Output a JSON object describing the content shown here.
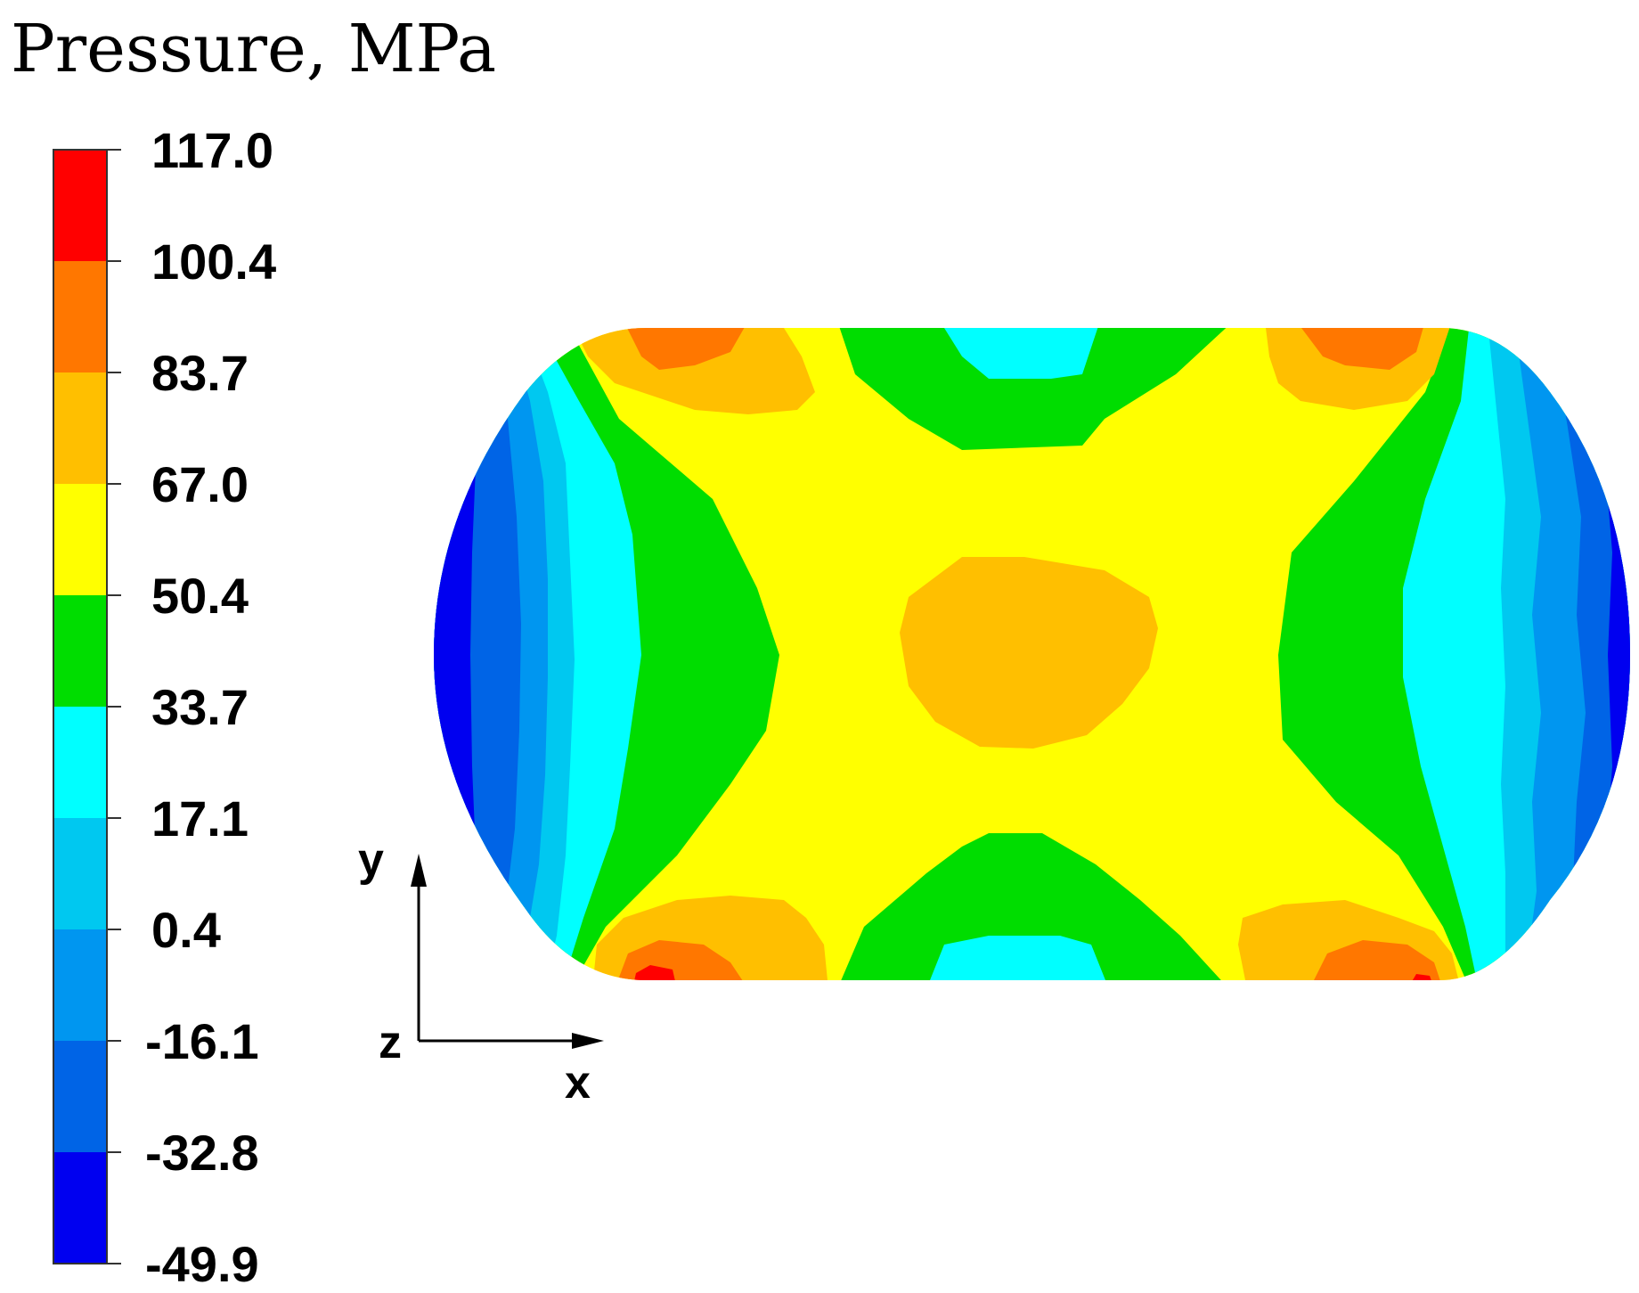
{
  "chart_data": {
    "type": "heatmap",
    "title": "Pressure, MPa",
    "colorbar": {
      "tick_labels": [
        "117.0",
        "100.4",
        "83.7",
        "67.0",
        "50.4",
        "33.7",
        "17.1",
        "0.4",
        "-16.1",
        "-32.8",
        "-49.9"
      ],
      "levels": [
        117.0,
        100.4,
        83.7,
        67.0,
        50.4,
        33.7,
        17.1,
        0.4,
        -16.1,
        -32.8,
        -49.9
      ],
      "band_colors": [
        "#ff0000",
        "#ff7700",
        "#ffbf00",
        "#ffff00",
        "#00dd00",
        "#00ffff",
        "#00c8f0",
        "#0096f0",
        "#0064e6",
        "#0000f0"
      ]
    },
    "axes": {
      "vertical": "y",
      "horizontal": "x",
      "normal": "z"
    }
  }
}
